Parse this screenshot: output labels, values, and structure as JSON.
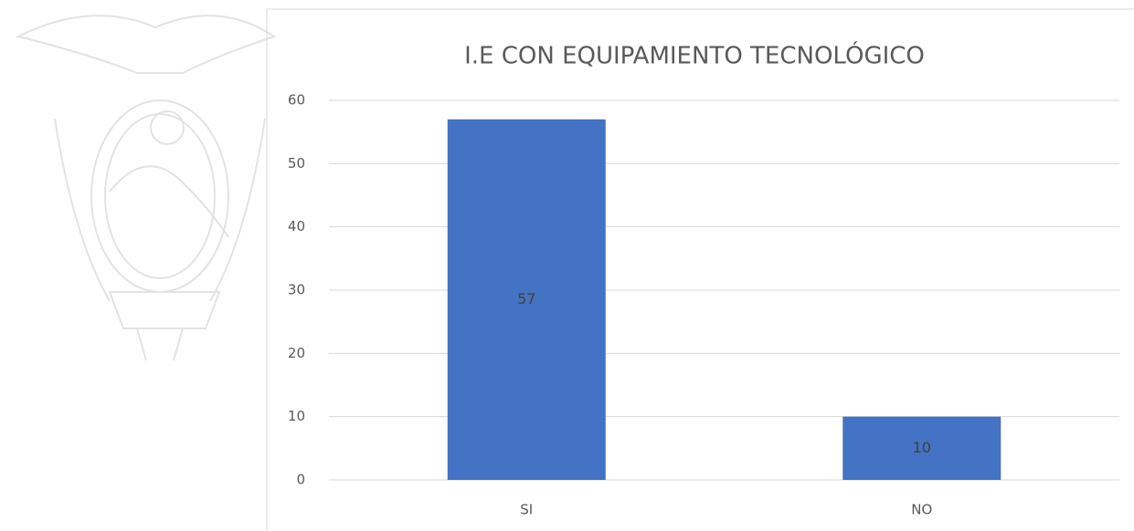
{
  "chart_data": {
    "type": "bar",
    "title": "I.E CON EQUIPAMIENTO TECNOLÓGICO",
    "categories": [
      "SI",
      "NO"
    ],
    "values": [
      57,
      10
    ],
    "color": "#4472c4",
    "ylim": [
      0,
      60
    ],
    "yticks": [
      0,
      10,
      20,
      30,
      40,
      50,
      60
    ],
    "grid": true,
    "data_labels": true
  }
}
